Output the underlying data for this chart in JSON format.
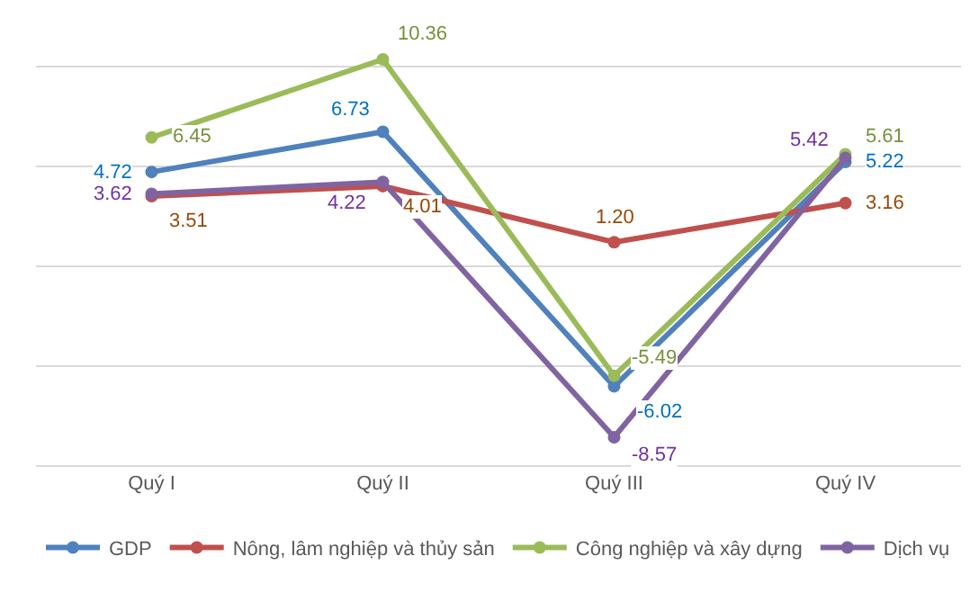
{
  "chart_data": {
    "type": "line",
    "categories": [
      "Quý I",
      "Quý II",
      "Quý III",
      "Quý IV"
    ],
    "series": [
      {
        "name": "GDP",
        "color": "#4f81bd",
        "values": [
          4.72,
          6.73,
          -6.02,
          5.22
        ],
        "value_labels": [
          "4.72",
          "6.73",
          "-6.02",
          "5.22"
        ]
      },
      {
        "name": "Nông, lâm nghiệp và thủy sản",
        "color": "#c0504d",
        "values": [
          3.51,
          4.01,
          1.2,
          3.16
        ],
        "value_labels": [
          "3.51",
          "4.01",
          "1.20",
          "3.16"
        ]
      },
      {
        "name": "Công nghiệp và xây dựng",
        "color": "#9bbb59",
        "values": [
          6.45,
          10.36,
          -5.49,
          5.61
        ],
        "value_labels": [
          "6.45",
          "10.36",
          "-5.49",
          "5.61"
        ]
      },
      {
        "name": "Dịch vụ",
        "color": "#8064a2",
        "values": [
          3.62,
          4.22,
          -8.57,
          5.42
        ],
        "value_labels": [
          "3.62",
          "4.22",
          "-8.57",
          "5.42"
        ]
      }
    ],
    "tick_labels": "x",
    "grid": "y",
    "legend": "bottom",
    "marker": "circle",
    "line_style": "solid"
  }
}
